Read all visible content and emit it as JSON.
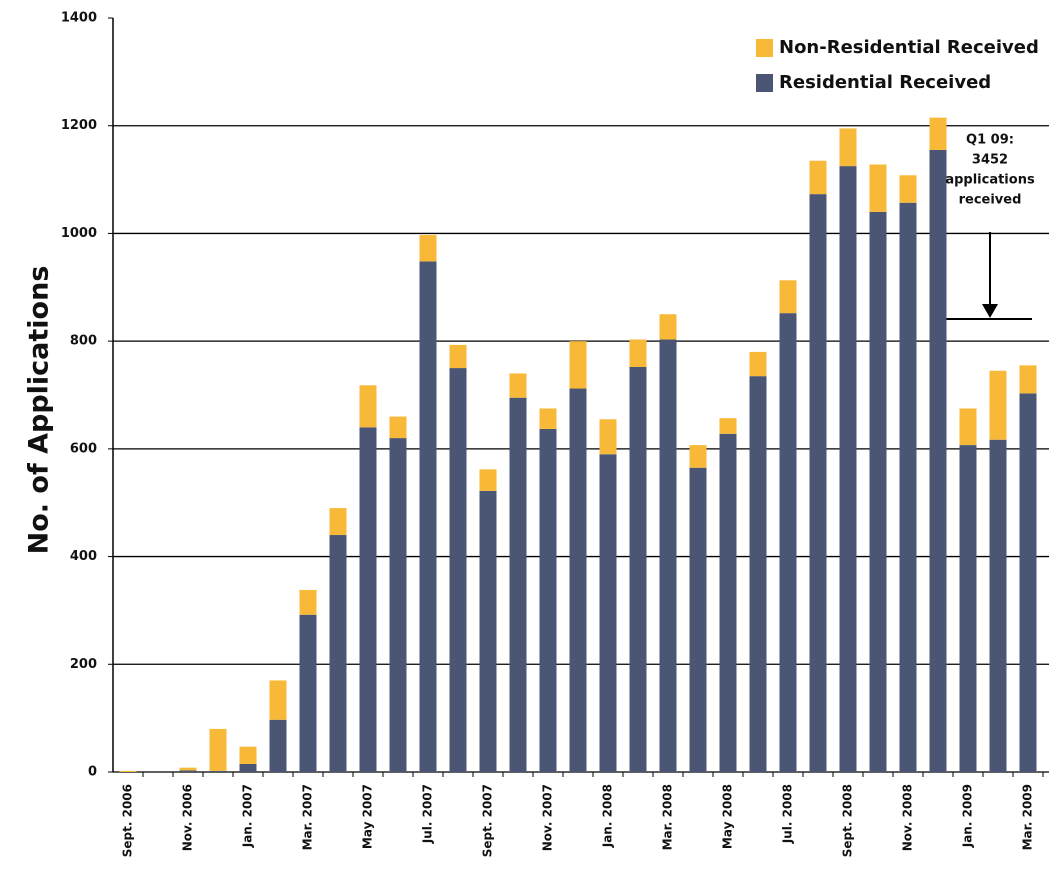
{
  "chart_data": {
    "type": "stacked-bar",
    "y_label": "No. of Applications",
    "annotation": [
      "Q1 09:",
      "3452",
      "applications",
      "received"
    ],
    "categories": [
      "Sept. 2006",
      null,
      "Nov. 2006",
      null,
      "Jan. 2007",
      null,
      "Mar. 2007",
      null,
      "May 2007",
      null,
      "Jul. 2007",
      null,
      "Sept. 2007",
      null,
      "Nov. 2007",
      null,
      "Jan. 2008",
      null,
      "Mar. 2008",
      null,
      "May 2008",
      null,
      "Jul. 2008",
      null,
      "Sept. 2008",
      null,
      "Nov. 2008",
      null,
      "Jan. 2009",
      null,
      "Mar. 2009"
    ],
    "series": [
      {
        "name": "Residential Received",
        "color": "#4a5673",
        "values": [
          0,
          0,
          3,
          2,
          15,
          97,
          292,
          440,
          640,
          620,
          948,
          750,
          522,
          695,
          637,
          712,
          590,
          752,
          803,
          565,
          628,
          735,
          852,
          1073,
          1125,
          1040,
          1057,
          1155,
          607,
          617,
          703
        ]
      },
      {
        "name": "Non-Residential Received",
        "color": "#f8b938",
        "values": [
          2,
          0,
          5,
          78,
          32,
          73,
          46,
          50,
          78,
          40,
          49,
          43,
          40,
          45,
          38,
          88,
          65,
          51,
          47,
          42,
          29,
          45,
          61,
          62,
          70,
          88,
          51,
          60,
          68,
          128,
          52
        ]
      }
    ],
    "ylim": [
      0,
      1400
    ],
    "yticks": [
      0,
      200,
      400,
      600,
      800,
      1000,
      1200,
      1400
    ],
    "grid": true,
    "legend": "top-right"
  }
}
